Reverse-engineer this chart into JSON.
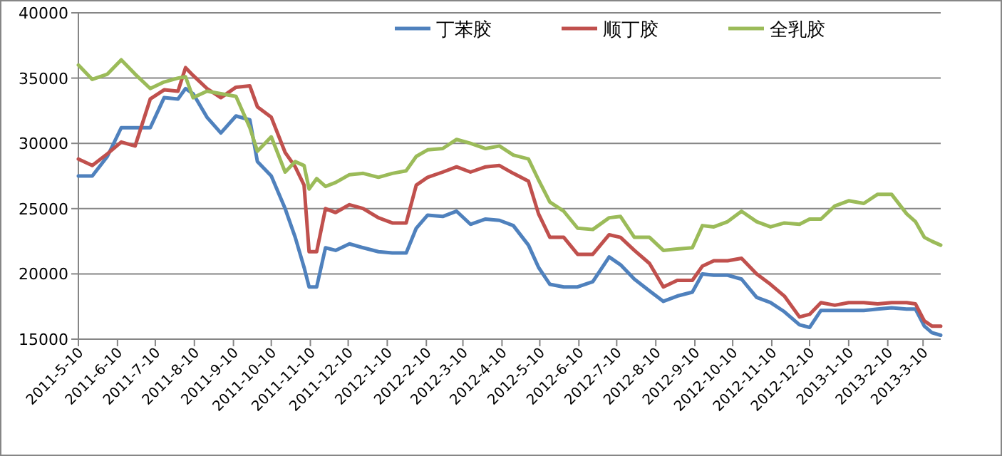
{
  "chart_data": {
    "type": "line",
    "x": [
      "2011-05-10",
      "2011-05-21",
      "2011-06-02",
      "2011-06-13",
      "2011-06-24",
      "2011-07-06",
      "2011-07-17",
      "2011-07-28",
      "2011-08-03",
      "2011-08-09",
      "2011-08-20",
      "2011-08-31",
      "2011-09-12",
      "2011-09-23",
      "2011-09-29",
      "2011-10-10",
      "2011-10-21",
      "2011-10-29",
      "2011-11-05",
      "2011-11-09",
      "2011-11-15",
      "2011-11-22",
      "2011-11-30",
      "2011-12-11",
      "2011-12-22",
      "2012-01-03",
      "2012-01-14",
      "2012-01-25",
      "2012-02-02",
      "2012-02-11",
      "2012-02-23",
      "2012-03-05",
      "2012-03-16",
      "2012-03-28",
      "2012-04-08",
      "2012-04-19",
      "2012-05-01",
      "2012-05-09",
      "2012-05-18",
      "2012-05-29",
      "2012-06-09",
      "2012-06-21",
      "2012-07-04",
      "2012-07-13",
      "2012-07-24",
      "2012-08-05",
      "2012-08-16",
      "2012-08-27",
      "2012-09-08",
      "2012-09-16",
      "2012-09-25",
      "2012-10-06",
      "2012-10-17",
      "2012-10-29",
      "2012-11-09",
      "2012-11-20",
      "2012-12-02",
      "2012-12-10",
      "2012-12-19",
      "2012-12-30",
      "2013-01-10",
      "2013-01-22",
      "2013-02-02",
      "2013-02-13",
      "2013-02-25",
      "2013-03-04",
      "2013-03-11",
      "2013-03-17",
      "2013-03-24"
    ],
    "series": [
      {
        "name": "丁苯胶",
        "color": "#4f81bd",
        "values": [
          27500,
          27500,
          29000,
          31200,
          31200,
          31200,
          33500,
          33400,
          34200,
          33800,
          32000,
          30800,
          32100,
          31800,
          28600,
          27500,
          25000,
          22800,
          20500,
          19000,
          19000,
          22000,
          21800,
          22300,
          22000,
          21700,
          21600,
          21600,
          23500,
          24500,
          24400,
          24800,
          23800,
          24200,
          24100,
          23700,
          22200,
          20500,
          19200,
          19000,
          19000,
          19400,
          21300,
          20700,
          19600,
          18700,
          17900,
          18300,
          18600,
          20000,
          19900,
          19900,
          19600,
          18200,
          17800,
          17100,
          16100,
          15900,
          17200,
          17200,
          17200,
          17200,
          17300,
          17400,
          17300,
          17300,
          16000,
          15500,
          15300
        ]
      },
      {
        "name": "顺丁胶",
        "color": "#c0504d",
        "values": [
          28800,
          28300,
          29200,
          30100,
          29800,
          33400,
          34100,
          34000,
          35800,
          35200,
          34200,
          33500,
          34300,
          34400,
          32800,
          32000,
          29300,
          28200,
          26800,
          21700,
          21700,
          25000,
          24700,
          25300,
          25000,
          24300,
          23900,
          23900,
          26800,
          27400,
          27800,
          28200,
          27800,
          28200,
          28300,
          27700,
          27100,
          24600,
          22800,
          22800,
          21500,
          21500,
          23000,
          22800,
          21800,
          20800,
          19000,
          19500,
          19500,
          20600,
          21000,
          21000,
          21200,
          20000,
          19200,
          18300,
          16700,
          16900,
          17800,
          17600,
          17800,
          17800,
          17700,
          17800,
          17800,
          17700,
          16400,
          16000,
          16000
        ]
      },
      {
        "name": "全乳胶",
        "color": "#9bbb59",
        "values": [
          36000,
          34900,
          35300,
          36400,
          35300,
          34200,
          34700,
          35000,
          35100,
          33500,
          34000,
          33800,
          33600,
          31200,
          29400,
          30500,
          27800,
          28600,
          28300,
          26500,
          27300,
          26700,
          27000,
          27600,
          27700,
          27400,
          27700,
          27900,
          29000,
          29500,
          29600,
          30300,
          30000,
          29600,
          29800,
          29100,
          28800,
          27200,
          25500,
          24800,
          23500,
          23400,
          24300,
          24400,
          22800,
          22800,
          21800,
          21900,
          22000,
          23700,
          23600,
          24000,
          24800,
          24000,
          23600,
          23900,
          23800,
          24200,
          24200,
          25200,
          25600,
          25400,
          26100,
          26100,
          24600,
          24000,
          22800,
          22500,
          22200
        ]
      }
    ],
    "xlim": [
      "2011-05-10",
      "2013-03-24"
    ],
    "xticks": [
      {
        "value": "2011-05-10",
        "label": "2011-5-10"
      },
      {
        "value": "2011-06-10",
        "label": "2011-6-10"
      },
      {
        "value": "2011-07-10",
        "label": "2011-7-10"
      },
      {
        "value": "2011-08-10",
        "label": "2011-8-10"
      },
      {
        "value": "2011-09-10",
        "label": "2011-9-10"
      },
      {
        "value": "2011-10-10",
        "label": "2011-10-10"
      },
      {
        "value": "2011-11-10",
        "label": "2011-11-10"
      },
      {
        "value": "2011-12-10",
        "label": "2011-12-10"
      },
      {
        "value": "2012-01-10",
        "label": "2012-1-10"
      },
      {
        "value": "2012-02-10",
        "label": "2012-2-10"
      },
      {
        "value": "2012-03-10",
        "label": "2012-3-10"
      },
      {
        "value": "2012-04-10",
        "label": "2012-4-10"
      },
      {
        "value": "2012-05-10",
        "label": "2012-5-10"
      },
      {
        "value": "2012-06-10",
        "label": "2012-6-10"
      },
      {
        "value": "2012-07-10",
        "label": "2012-7-10"
      },
      {
        "value": "2012-08-10",
        "label": "2012-8-10"
      },
      {
        "value": "2012-09-10",
        "label": "2012-9-10"
      },
      {
        "value": "2012-10-10",
        "label": "2012-10-10"
      },
      {
        "value": "2012-11-10",
        "label": "2012-11-10"
      },
      {
        "value": "2012-12-10",
        "label": "2012-12-10"
      },
      {
        "value": "2013-01-10",
        "label": "2013-1-10"
      },
      {
        "value": "2013-02-10",
        "label": "2013-2-10"
      },
      {
        "value": "2013-03-10",
        "label": "2013-3-10"
      }
    ],
    "ylim": [
      15000,
      40000
    ],
    "yticks": [
      15000,
      20000,
      25000,
      30000,
      35000,
      40000
    ],
    "grid": "y",
    "legend": "top",
    "marker": "none",
    "line_style": "solid"
  }
}
